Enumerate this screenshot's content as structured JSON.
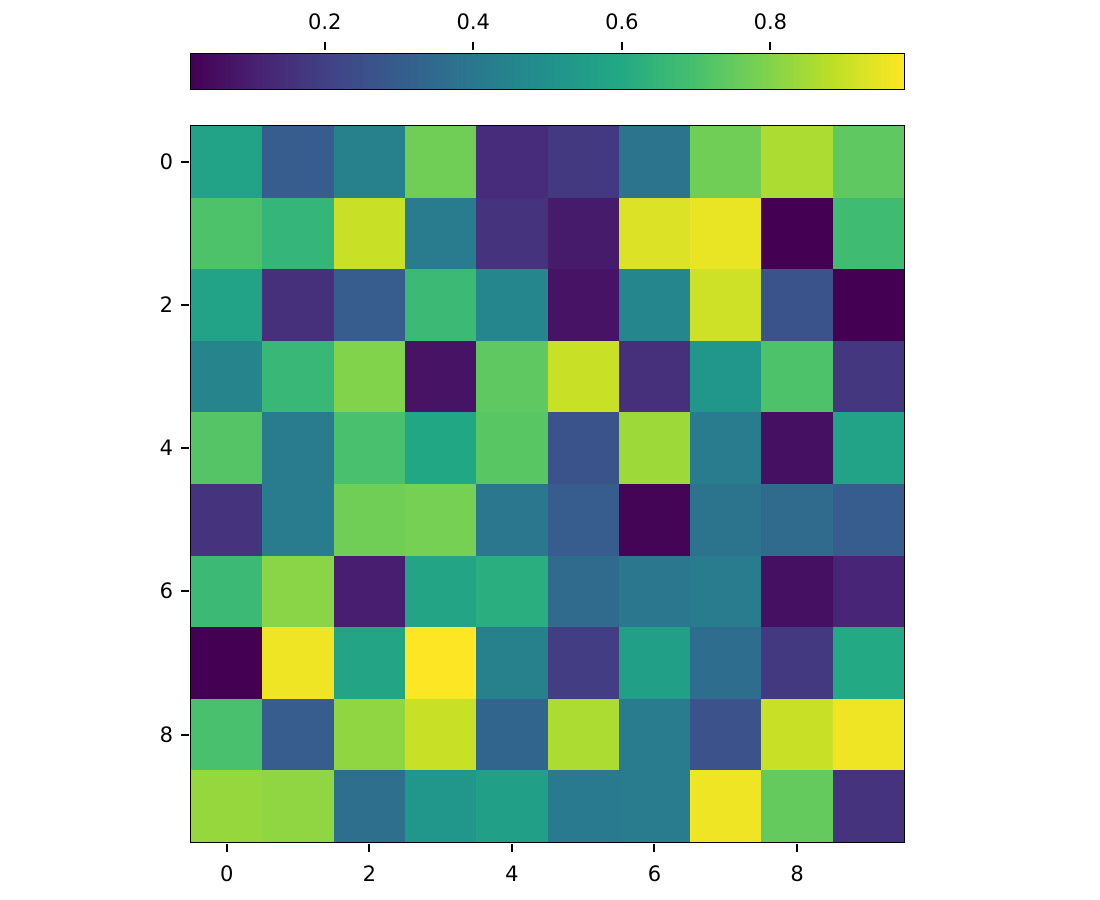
{
  "figure": {
    "background": "#ffffff",
    "border_color": "#000000",
    "tick_color": "#000000",
    "text_color": "#000000"
  },
  "colormap": {
    "name": "viridis",
    "stops": [
      "#440154",
      "#482475",
      "#414487",
      "#355f8d",
      "#2a788e",
      "#21918c",
      "#22a884",
      "#44bf70",
      "#7ad151",
      "#bddf26",
      "#fde725"
    ]
  },
  "colorbar": {
    "orientation": "horizontal",
    "position": "top",
    "tick_values": [
      0.2,
      0.4,
      0.6,
      0.8
    ],
    "tick_labels": [
      "0.2",
      "0.4",
      "0.6",
      "0.8"
    ]
  },
  "chart_data": {
    "type": "heatmap",
    "title": "",
    "xlabel": "",
    "ylabel": "",
    "rows": 10,
    "cols": 10,
    "vmin": 0.02,
    "vmax": 0.98,
    "colormap": "viridis",
    "legend_position": "top-colorbar",
    "grid": false,
    "x_tick_values": [
      0,
      2,
      4,
      6,
      8
    ],
    "x_tick_labels": [
      "0",
      "2",
      "4",
      "6",
      "8"
    ],
    "y_tick_values": [
      0,
      2,
      4,
      6,
      8
    ],
    "y_tick_labels": [
      "0",
      "2",
      "4",
      "6",
      "8"
    ],
    "values": [
      [
        0.57,
        0.3,
        0.44,
        0.77,
        0.14,
        0.18,
        0.39,
        0.77,
        0.86,
        0.74
      ],
      [
        0.71,
        0.65,
        0.9,
        0.42,
        0.16,
        0.09,
        0.93,
        0.95,
        0.01,
        0.68
      ],
      [
        0.57,
        0.15,
        0.3,
        0.67,
        0.46,
        0.07,
        0.46,
        0.91,
        0.27,
        0.02
      ],
      [
        0.45,
        0.66,
        0.8,
        0.07,
        0.74,
        0.9,
        0.15,
        0.52,
        0.71,
        0.17
      ],
      [
        0.72,
        0.42,
        0.7,
        0.59,
        0.73,
        0.27,
        0.84,
        0.42,
        0.06,
        0.57
      ],
      [
        0.16,
        0.42,
        0.77,
        0.78,
        0.4,
        0.3,
        0.03,
        0.39,
        0.35,
        0.3
      ],
      [
        0.67,
        0.81,
        0.1,
        0.58,
        0.62,
        0.35,
        0.4,
        0.42,
        0.06,
        0.12
      ],
      [
        0.01,
        0.96,
        0.58,
        0.99,
        0.44,
        0.19,
        0.56,
        0.36,
        0.18,
        0.6
      ],
      [
        0.7,
        0.3,
        0.82,
        0.9,
        0.33,
        0.86,
        0.42,
        0.26,
        0.9,
        0.96
      ],
      [
        0.83,
        0.82,
        0.37,
        0.52,
        0.56,
        0.41,
        0.42,
        0.96,
        0.75,
        0.16
      ]
    ]
  }
}
